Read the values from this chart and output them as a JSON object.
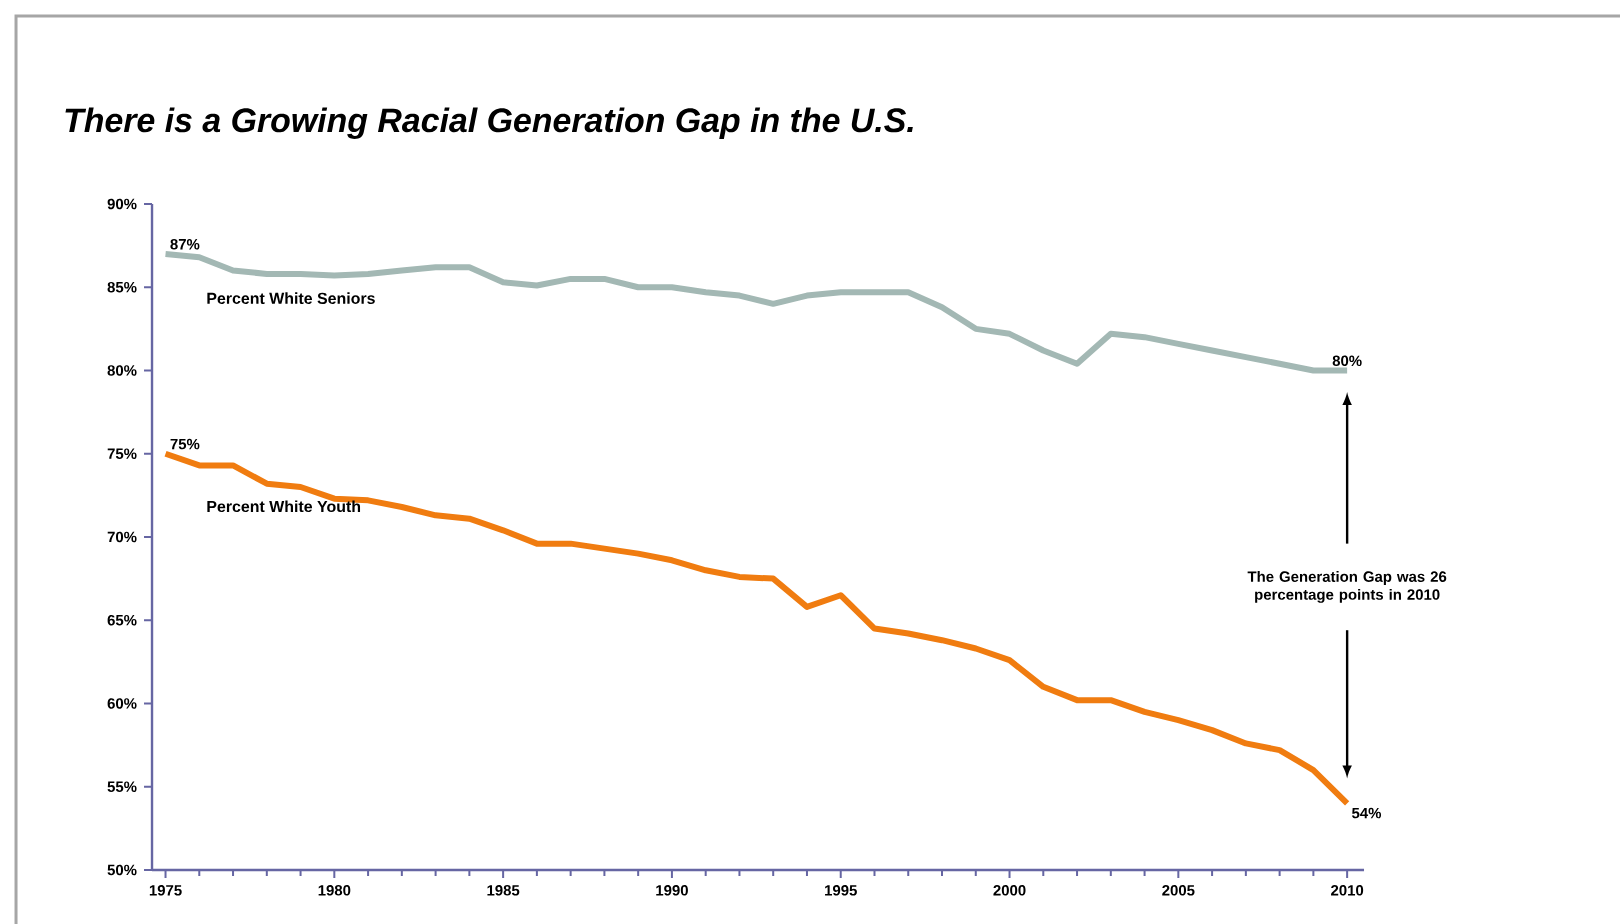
{
  "chart_data": {
    "type": "line",
    "title": "There is a Growing Racial Generation Gap in the U.S.",
    "x": [
      1975,
      1976,
      1977,
      1978,
      1979,
      1980,
      1981,
      1982,
      1983,
      1984,
      1985,
      1986,
      1987,
      1988,
      1989,
      1990,
      1991,
      1992,
      1993,
      1994,
      1995,
      1996,
      1997,
      1998,
      1999,
      2000,
      2001,
      2002,
      2003,
      2004,
      2005,
      2006,
      2007,
      2008,
      2009,
      2010
    ],
    "series": [
      {
        "name": "Percent White Seniors",
        "color": "#a3b8b4",
        "values": [
          87,
          86.8,
          86,
          85.8,
          85.8,
          85.7,
          85.8,
          86,
          86.2,
          86.2,
          85.3,
          85.1,
          85.5,
          85.5,
          85,
          85,
          84.7,
          84.5,
          84,
          84.5,
          84.7,
          84.7,
          84.7,
          83.8,
          82.5,
          82.2,
          81.2,
          80.4,
          82.2,
          82,
          81.6,
          81.2,
          80.8,
          80.4,
          80,
          80
        ],
        "value_labels": [
          "87%",
          null,
          null,
          null,
          null,
          null,
          null,
          null,
          null,
          null,
          null,
          null,
          null,
          null,
          null,
          null,
          null,
          null,
          null,
          null,
          null,
          null,
          null,
          null,
          null,
          null,
          null,
          null,
          null,
          null,
          null,
          null,
          null,
          null,
          null,
          "80%"
        ]
      },
      {
        "name": "Percent White Youth",
        "color": "#f07c10",
        "values": [
          75,
          74.3,
          74.3,
          73.2,
          73,
          72.3,
          72.2,
          71.8,
          71.3,
          71.1,
          70.4,
          69.6,
          69.6,
          69.3,
          69,
          68.6,
          68,
          67.6,
          67.5,
          65.8,
          66.5,
          64.5,
          64.2,
          63.8,
          63.3,
          62.6,
          61,
          60.2,
          60.2,
          59.5,
          59,
          58.4,
          57.6,
          57.2,
          56,
          54
        ],
        "value_labels": [
          "75%",
          null,
          null,
          null,
          null,
          null,
          null,
          null,
          null,
          null,
          null,
          null,
          null,
          null,
          null,
          null,
          null,
          null,
          null,
          null,
          null,
          null,
          null,
          null,
          null,
          null,
          null,
          null,
          null,
          null,
          null,
          null,
          null,
          null,
          null,
          "54%"
        ]
      }
    ],
    "xlim": [
      1974.6,
      2010.5
    ],
    "ylim": [
      50,
      90
    ],
    "xticks": [
      1975,
      1980,
      1985,
      1990,
      1995,
      2000,
      2005,
      2010
    ],
    "yticks": [
      {
        "value": 50,
        "label": "50%"
      },
      {
        "value": 55,
        "label": "55%"
      },
      {
        "value": 60,
        "label": "60%"
      },
      {
        "value": 65,
        "label": "65%"
      },
      {
        "value": 70,
        "label": "70%"
      },
      {
        "value": 75,
        "label": "75%"
      },
      {
        "value": 80,
        "label": "80%"
      },
      {
        "value": 85,
        "label": "85%"
      },
      {
        "value": 90,
        "label": "90%"
      }
    ],
    "annotations": [
      "The Generation Gap was 26 percentage points in 2010"
    ],
    "grid": false,
    "legend": false,
    "marker": "none",
    "line_style": "solid"
  }
}
